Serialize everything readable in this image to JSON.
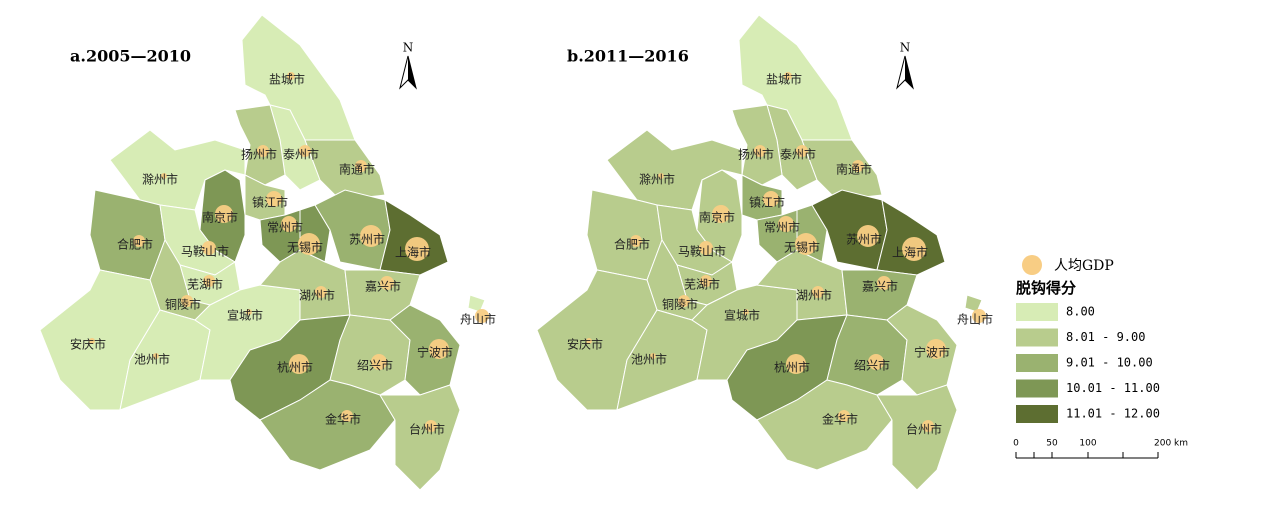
{
  "north": "N",
  "panels": [
    {
      "title": "a.2005—2010",
      "cities": [
        {
          "name": "盐城市",
          "color": "#d7ecb5"
        },
        {
          "name": "泰州市",
          "color": "#d7ecb5"
        },
        {
          "name": "扬州市",
          "color": "#b8cc8d"
        },
        {
          "name": "南通市",
          "color": "#b8cc8d"
        },
        {
          "name": "滁州市",
          "color": "#d7ecb5"
        },
        {
          "name": "南京市",
          "color": "#7e9755"
        },
        {
          "name": "镇江市",
          "color": "#b8cc8d"
        },
        {
          "name": "常州市",
          "color": "#7e9755"
        },
        {
          "name": "无锡市",
          "color": "#7e9755"
        },
        {
          "name": "苏州市",
          "color": "#9ab270"
        },
        {
          "name": "上海市",
          "color": "#5d6e31"
        },
        {
          "name": "合肥市",
          "color": "#9ab270"
        },
        {
          "name": "马鞍山市",
          "color": "#d7ecb5"
        },
        {
          "name": "芜湖市",
          "color": "#d7ecb5"
        },
        {
          "name": "铜陵市",
          "color": "#b8cc8d"
        },
        {
          "name": "安庆市",
          "color": "#d7ecb5"
        },
        {
          "name": "池州市",
          "color": "#d7ecb5"
        },
        {
          "name": "宣城市",
          "color": "#d7ecb5"
        },
        {
          "name": "湖州市",
          "color": "#b8cc8d"
        },
        {
          "name": "嘉兴市",
          "color": "#b8cc8d"
        },
        {
          "name": "杭州市",
          "color": "#7e9755"
        },
        {
          "name": "绍兴市",
          "color": "#b8cc8d"
        },
        {
          "name": "宁波市",
          "color": "#9ab270"
        },
        {
          "name": "金华市",
          "color": "#9ab270"
        },
        {
          "name": "台州市",
          "color": "#b8cc8d"
        },
        {
          "name": "舟山市",
          "color": "#d7ecb5"
        }
      ]
    },
    {
      "title": "b.2011—2016",
      "cities": [
        {
          "name": "盐城市",
          "color": "#d7ecb5"
        },
        {
          "name": "泰州市",
          "color": "#b8cc8d"
        },
        {
          "name": "扬州市",
          "color": "#b8cc8d"
        },
        {
          "name": "南通市",
          "color": "#b8cc8d"
        },
        {
          "name": "滁州市",
          "color": "#b8cc8d"
        },
        {
          "name": "南京市",
          "color": "#b8cc8d"
        },
        {
          "name": "镇江市",
          "color": "#9ab270"
        },
        {
          "name": "常州市",
          "color": "#9ab270"
        },
        {
          "name": "无锡市",
          "color": "#9ab270"
        },
        {
          "name": "苏州市",
          "color": "#5d6e31"
        },
        {
          "name": "上海市",
          "color": "#5d6e31"
        },
        {
          "name": "合肥市",
          "color": "#b8cc8d"
        },
        {
          "name": "马鞍山市",
          "color": "#b8cc8d"
        },
        {
          "name": "芜湖市",
          "color": "#b8cc8d"
        },
        {
          "name": "铜陵市",
          "color": "#b8cc8d"
        },
        {
          "name": "安庆市",
          "color": "#b8cc8d"
        },
        {
          "name": "池州市",
          "color": "#b8cc8d"
        },
        {
          "name": "宣城市",
          "color": "#b8cc8d"
        },
        {
          "name": "湖州市",
          "color": "#b8cc8d"
        },
        {
          "name": "嘉兴市",
          "color": "#9ab270"
        },
        {
          "name": "杭州市",
          "color": "#7e9755"
        },
        {
          "name": "绍兴市",
          "color": "#9ab270"
        },
        {
          "name": "宁波市",
          "color": "#b8cc8d"
        },
        {
          "name": "金华市",
          "color": "#b8cc8d"
        },
        {
          "name": "台州市",
          "color": "#b8cc8d"
        },
        {
          "name": "舟山市",
          "color": "#b8cc8d"
        }
      ]
    }
  ],
  "legend": {
    "gdp_label": "人均GDP",
    "gdp_color": "#f8cd84",
    "title": "脱钩得分",
    "classes": [
      {
        "label": "8.00",
        "color": "#d7ecb5"
      },
      {
        "label": "8.01 - 9.00",
        "color": "#b8cc8d"
      },
      {
        "label": "9.01 - 10.00",
        "color": "#9ab270"
      },
      {
        "label": "10.01 - 11.00",
        "color": "#7e9755"
      },
      {
        "label": "11.01 - 12.00",
        "color": "#5d6e31"
      }
    ]
  },
  "scale": {
    "ticks": [
      "0",
      "50",
      "100",
      "200 km"
    ]
  }
}
